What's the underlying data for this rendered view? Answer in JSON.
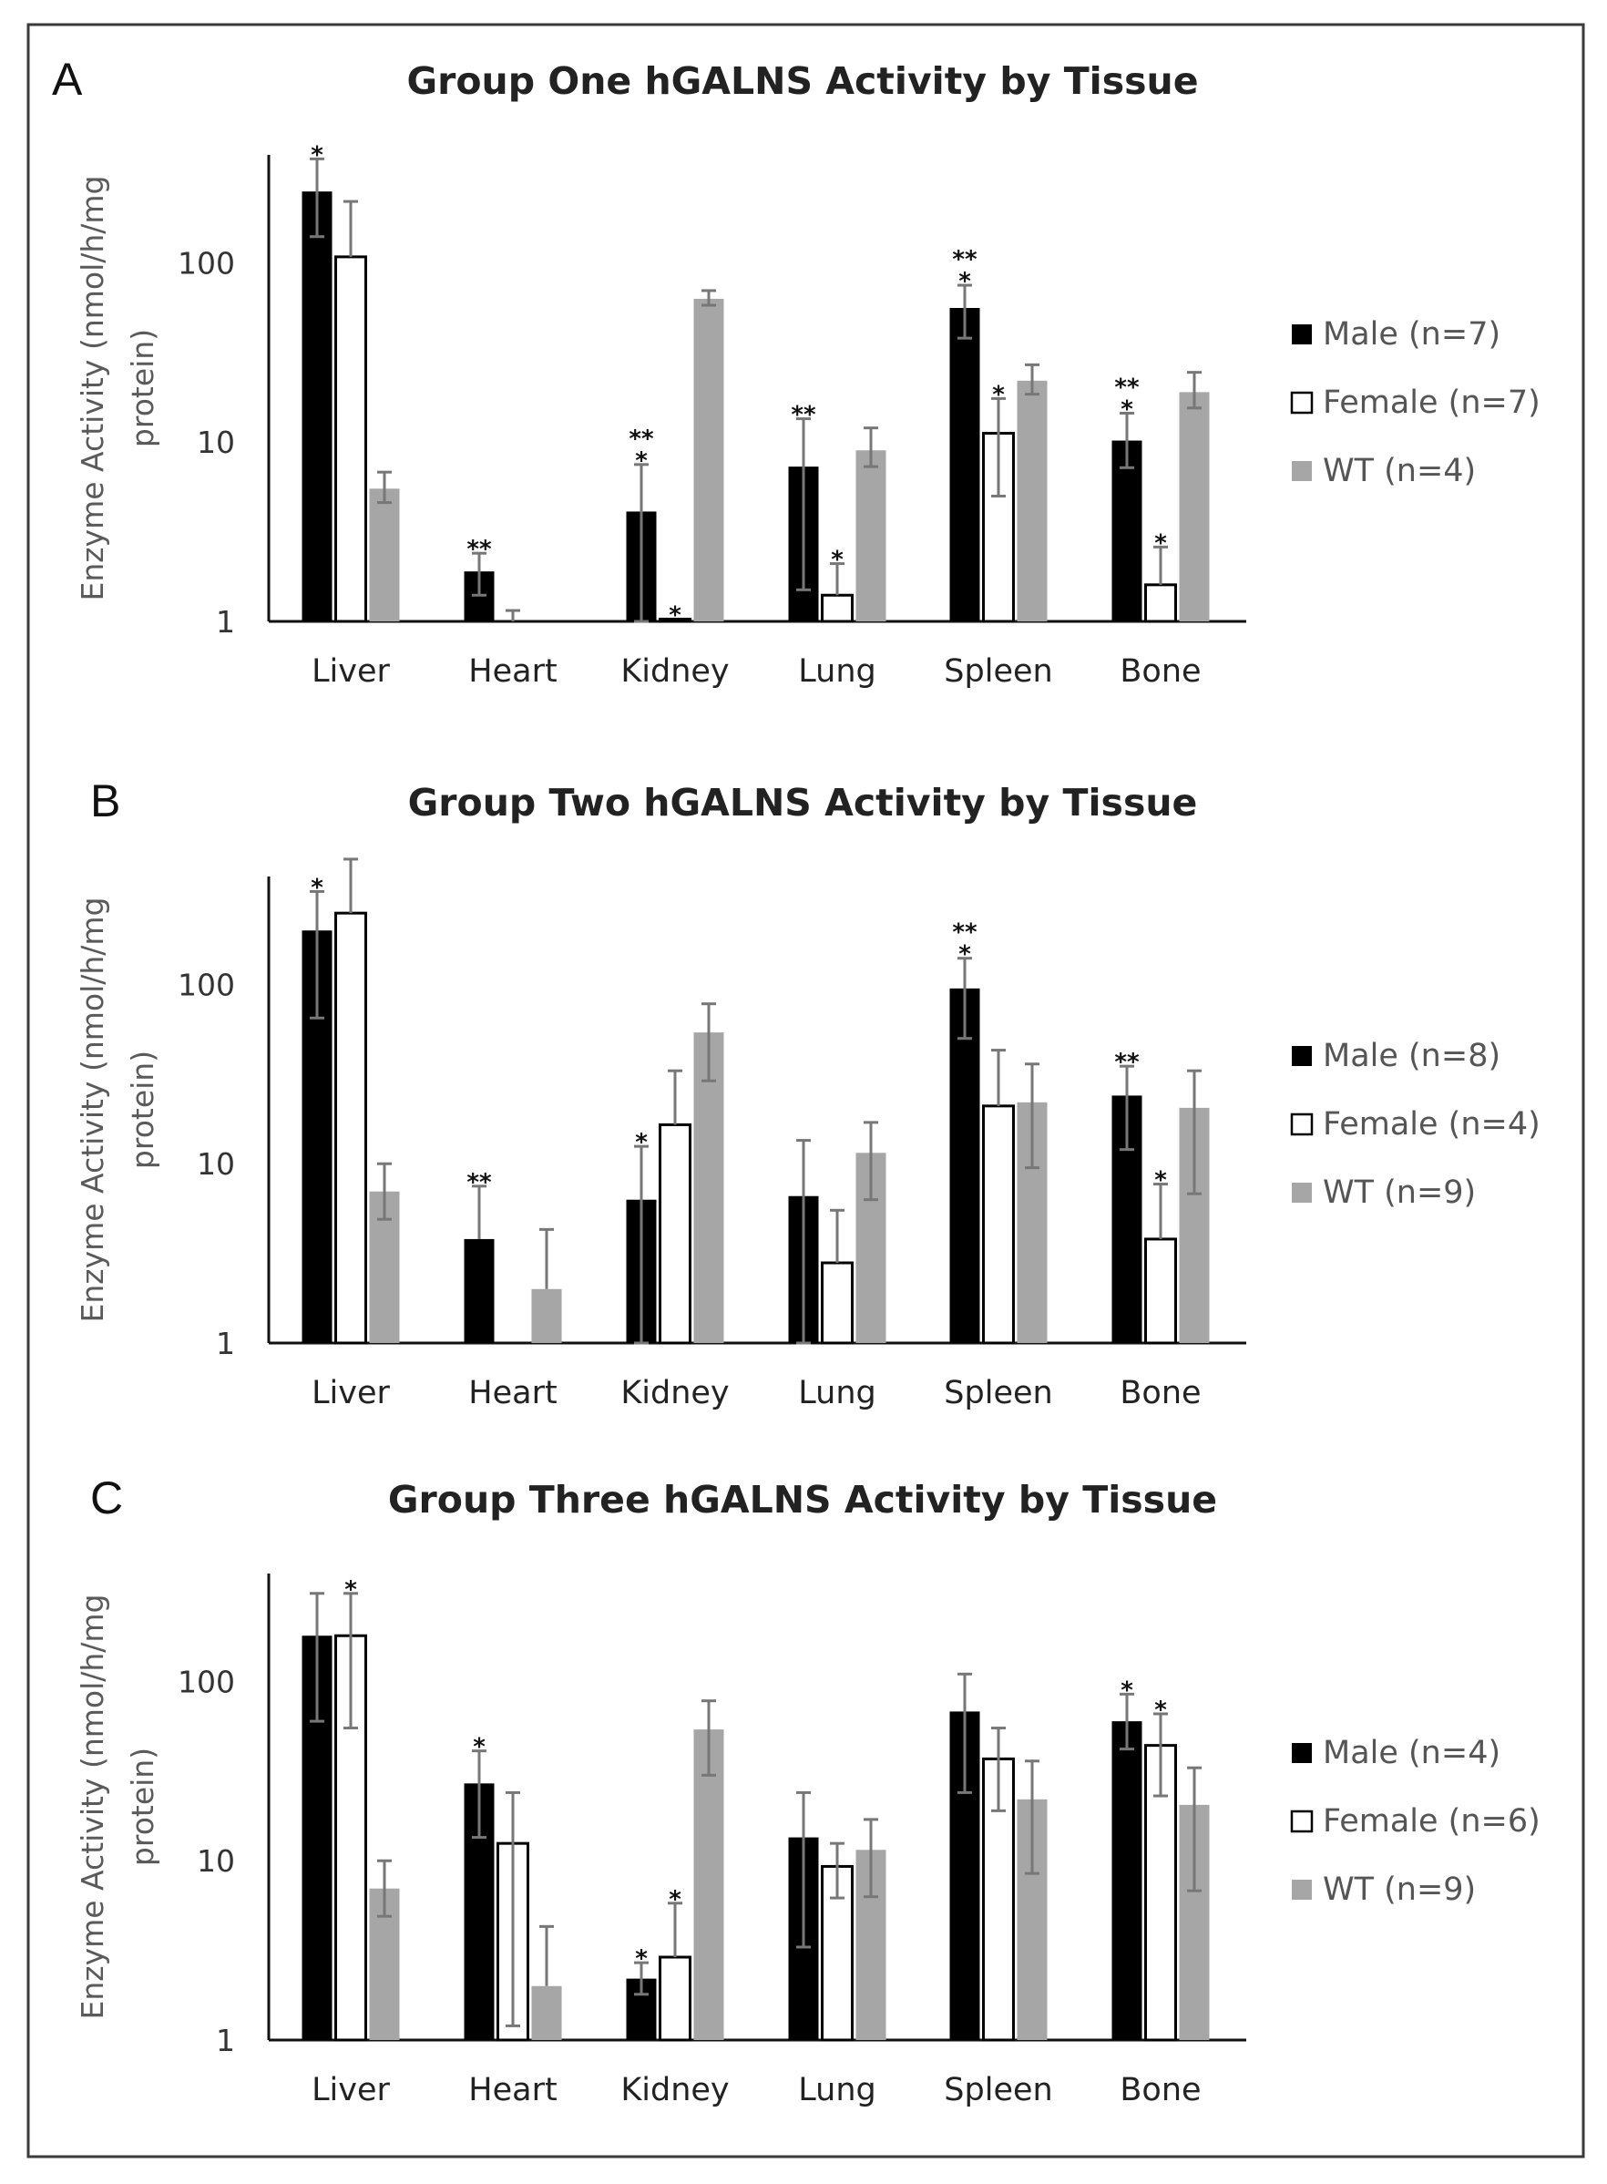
{
  "figure": {
    "panels": [
      {
        "letter": "A",
        "title": "Group One hGALNS Activity by Tissue"
      },
      {
        "letter": "B",
        "title": "Group Two hGALNS Activity by Tissue"
      },
      {
        "letter": "C",
        "title": "Group Three hGALNS Activity by Tissue"
      }
    ],
    "colors": {
      "male": "#000000",
      "female": "#ffffff",
      "wt": "#a6a6a6",
      "error": "#777777"
    }
  },
  "chart_data": [
    {
      "type": "bar",
      "title": "Group One hGALNS Activity by Tissue",
      "xlabel": "",
      "ylabel_lines": [
        "Enzyme Activity (nmol/h/mg",
        "protein)"
      ],
      "yscale": "log",
      "ylim": [
        1,
        400
      ],
      "yticks": [
        1,
        10,
        100
      ],
      "ytick_labels": [
        "1",
        "10",
        "100"
      ],
      "categories": [
        "Liver",
        "Heart",
        "Kidney",
        "Lung",
        "Spleen",
        "Bone"
      ],
      "series": [
        {
          "name": "Male (n=7)",
          "values": [
            250,
            1.9,
            4.1,
            7.3,
            56,
            10.2
          ],
          "err_high": [
            380,
            2.4,
            7.5,
            13.5,
            75,
            14.5
          ],
          "err_low": [
            140,
            1.4,
            1.0,
            1.5,
            38,
            7.2
          ],
          "sig": [
            "*",
            "**",
            "* **",
            "**",
            "* **",
            "* **"
          ]
        },
        {
          "name": "Female (n=7)",
          "values": [
            108,
            1.0,
            1.03,
            1.4,
            11.2,
            1.6
          ],
          "err_high": [
            220,
            1.15,
            null,
            2.1,
            17.5,
            2.6
          ],
          "err_low": [
            null,
            null,
            null,
            null,
            5.0,
            null
          ],
          "sig": [
            "",
            "",
            "*",
            "*",
            "*",
            "*"
          ]
        },
        {
          "name": "WT (n=4)",
          "values": [
            5.5,
            1.0,
            63,
            9.0,
            22,
            19
          ],
          "err_high": [
            6.8,
            null,
            70,
            12.0,
            27,
            24.5
          ],
          "err_low": [
            4.6,
            null,
            58,
            7.3,
            18.5,
            15.5
          ],
          "sig": [
            "",
            "",
            "",
            "",
            "",
            ""
          ]
        }
      ],
      "legend": [
        "Male (n=7)",
        "Female (n=7)",
        "WT (n=4)"
      ],
      "legend_position": "right"
    },
    {
      "type": "bar",
      "title": "Group Two hGALNS Activity by Tissue",
      "xlabel": "",
      "ylabel_lines": [
        "Enzyme Activity (nmol/h/mg",
        "protein)"
      ],
      "yscale": "log",
      "ylim": [
        1,
        400
      ],
      "yticks": [
        1,
        10,
        100
      ],
      "ytick_labels": [
        "1",
        "10",
        "100"
      ],
      "categories": [
        "Liver",
        "Heart",
        "Kidney",
        "Lung",
        "Spleen",
        "Bone"
      ],
      "series": [
        {
          "name": "Male (n=8)",
          "values": [
            200,
            3.8,
            6.3,
            6.6,
            95,
            24
          ],
          "err_high": [
            330,
            7.5,
            12.5,
            13.5,
            140,
            35
          ],
          "err_low": [
            65,
            null,
            1.0,
            1.0,
            50,
            12
          ],
          "sig": [
            "*",
            "**",
            "*",
            "",
            "* **",
            "**"
          ]
        },
        {
          "name": "Female (n=4)",
          "values": [
            250,
            1.0,
            16.5,
            2.8,
            21,
            3.8
          ],
          "err_high": [
            500,
            null,
            33,
            5.5,
            43,
            7.7
          ],
          "err_low": [
            null,
            null,
            null,
            null,
            null,
            null
          ],
          "sig": [
            "",
            "",
            "",
            "",
            "",
            "*"
          ]
        },
        {
          "name": "WT (n=9)",
          "values": [
            7.0,
            2.0,
            54,
            11.5,
            22,
            20.5
          ],
          "err_high": [
            10,
            4.3,
            78,
            17,
            36,
            33
          ],
          "err_low": [
            4.9,
            null,
            29,
            6.3,
            9.5,
            6.8
          ],
          "sig": [
            "",
            "",
            "",
            "",
            "",
            ""
          ]
        }
      ],
      "legend": [
        "Male (n=8)",
        "Female (n=4)",
        "WT (n=9)"
      ],
      "legend_position": "right"
    },
    {
      "type": "bar",
      "title": "Group Three hGALNS Activity by Tissue",
      "xlabel": "",
      "ylabel_lines": [
        "Enzyme Activity (nmol/h/mg",
        "protein)"
      ],
      "yscale": "log",
      "ylim": [
        1,
        400
      ],
      "yticks": [
        1,
        10,
        100
      ],
      "ytick_labels": [
        "1",
        "10",
        "100"
      ],
      "categories": [
        "Liver",
        "Heart",
        "Kidney",
        "Lung",
        "Spleen",
        "Bone"
      ],
      "series": [
        {
          "name": "Male (n=4)",
          "values": [
            180,
            27,
            2.2,
            13.5,
            68,
            60
          ],
          "err_high": [
            310,
            41,
            2.7,
            24,
            110,
            85
          ],
          "err_low": [
            60,
            13.5,
            1.8,
            3.3,
            24,
            42
          ],
          "sig": [
            "",
            "*",
            "*",
            "",
            "",
            "*"
          ]
        },
        {
          "name": "Female (n=6)",
          "values": [
            180,
            12.5,
            2.9,
            9.3,
            37,
            44
          ],
          "err_high": [
            310,
            24,
            5.8,
            12.5,
            55,
            66
          ],
          "err_low": [
            55,
            1.2,
            null,
            6.2,
            19,
            23
          ],
          "sig": [
            "*",
            "",
            "*",
            "",
            "",
            "*"
          ]
        },
        {
          "name": "WT (n=9)",
          "values": [
            7.0,
            2.0,
            54,
            11.5,
            22,
            20.5
          ],
          "err_high": [
            10,
            4.3,
            78,
            17,
            36,
            33
          ],
          "err_low": [
            4.9,
            null,
            30,
            6.3,
            8.5,
            6.8
          ],
          "sig": [
            "",
            "",
            "",
            "",
            "",
            ""
          ]
        }
      ],
      "legend": [
        "Male (n=4)",
        "Female (n=6)",
        "WT (n=9)"
      ],
      "legend_position": "right"
    }
  ]
}
